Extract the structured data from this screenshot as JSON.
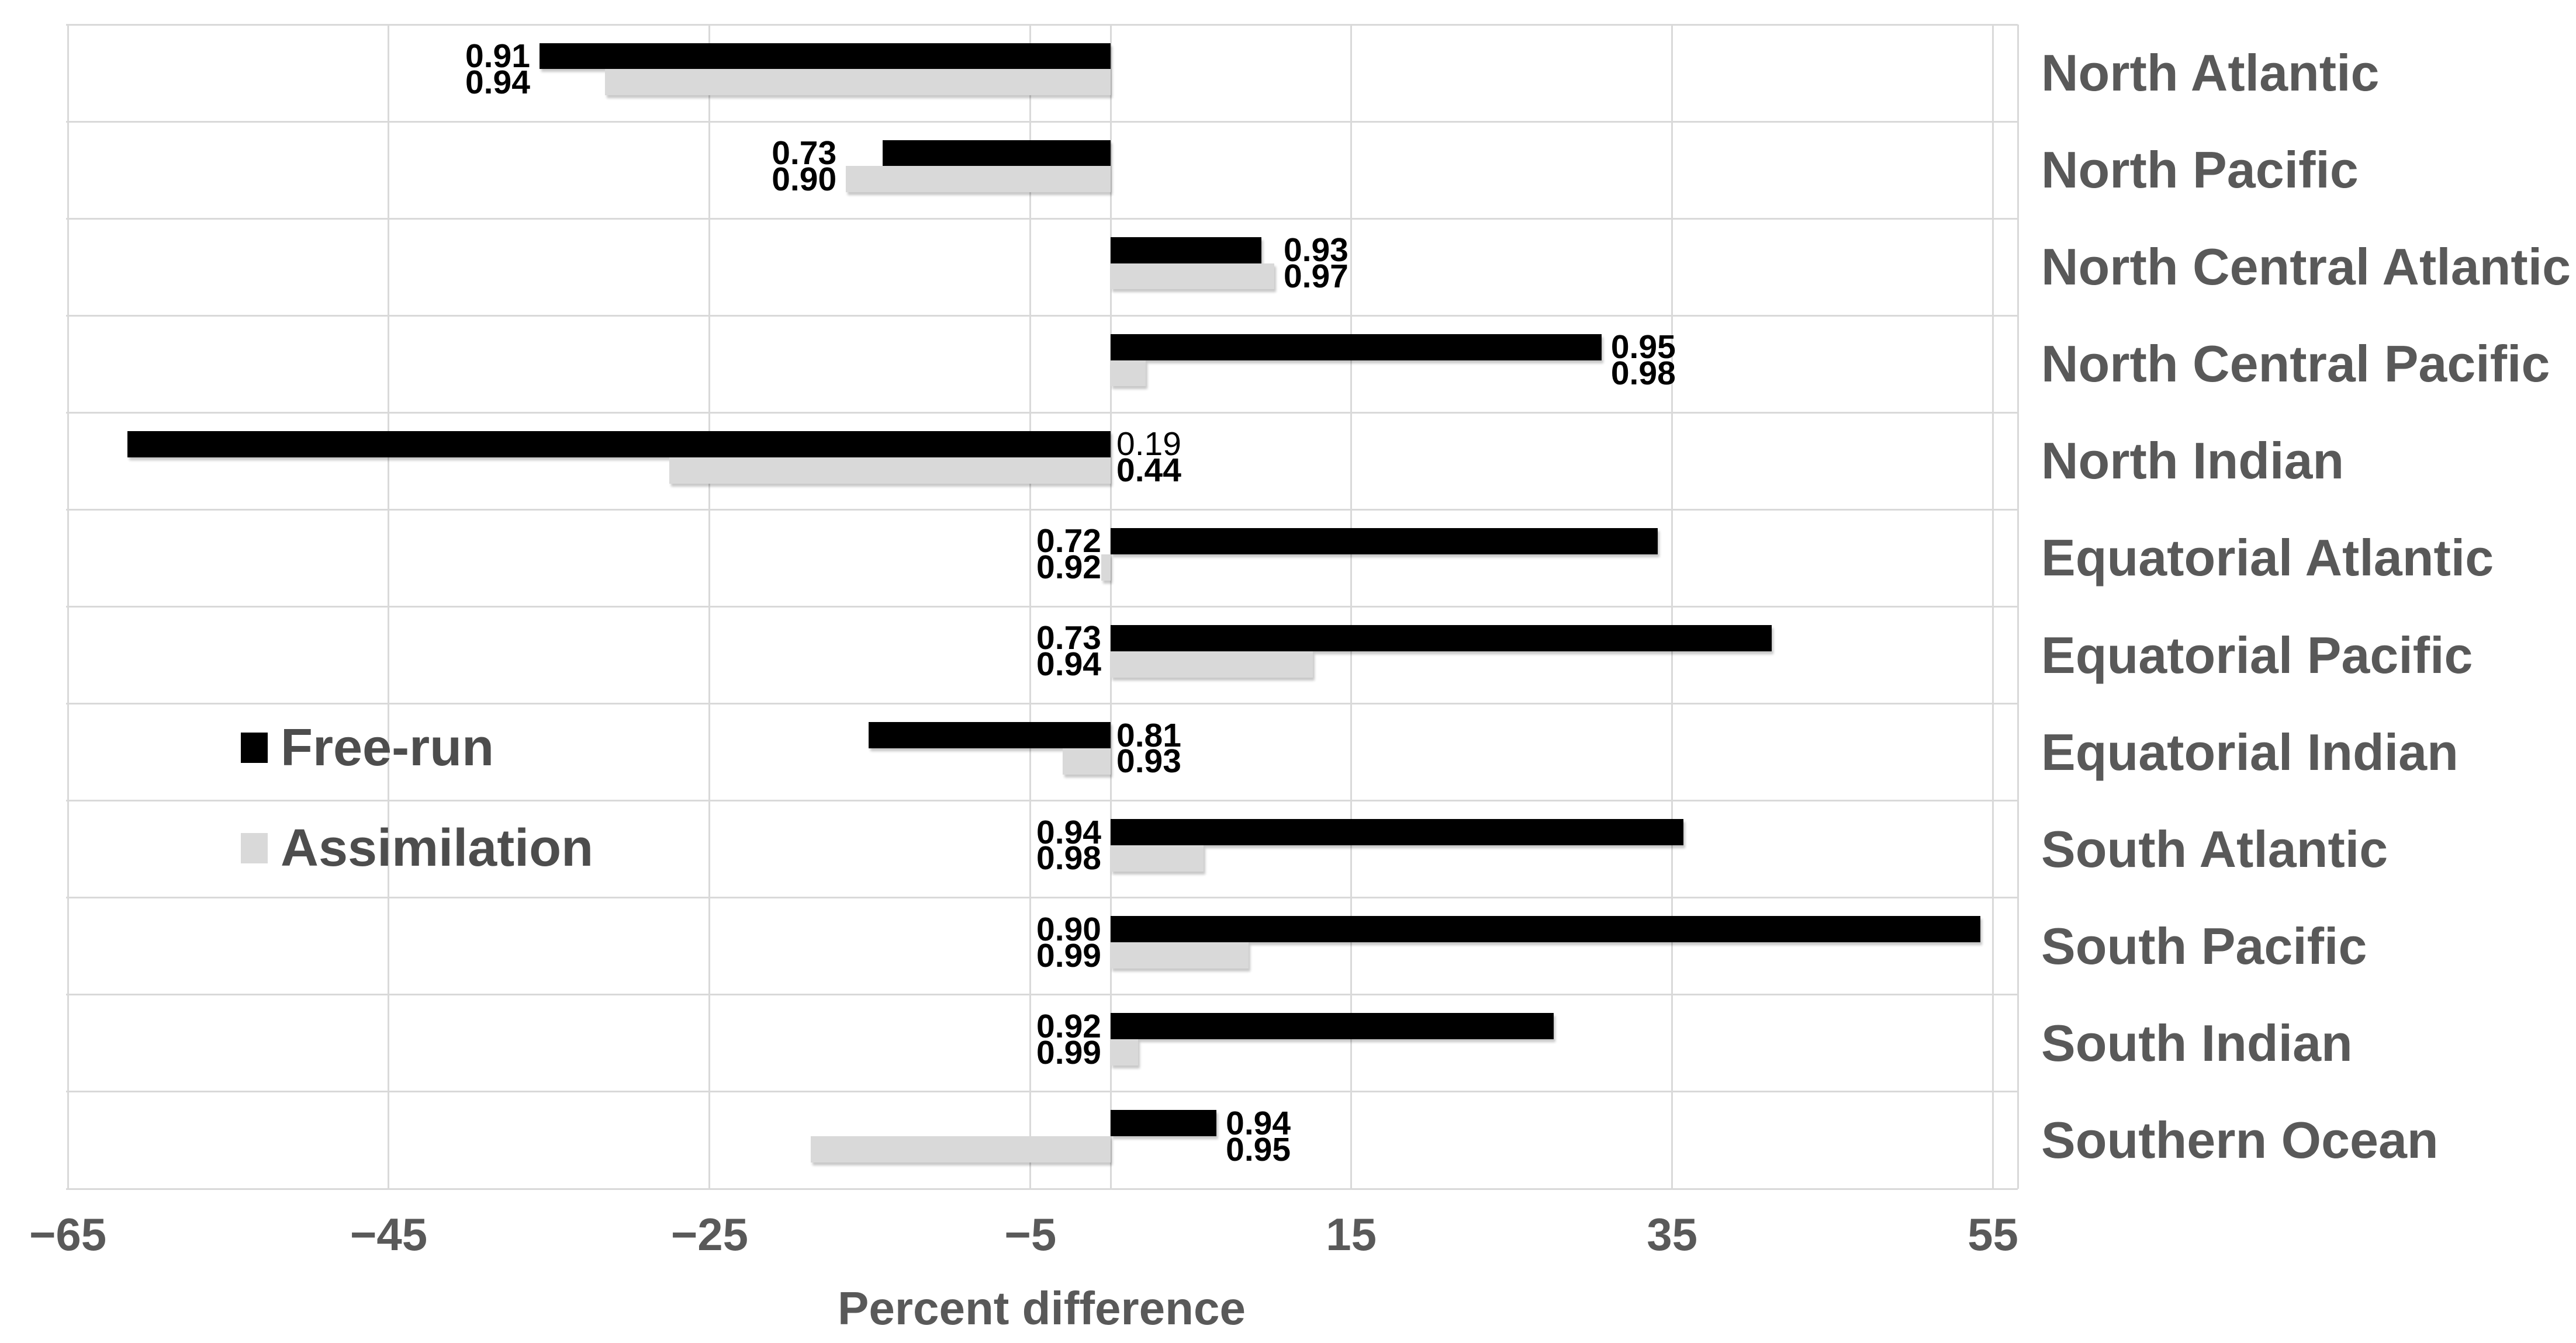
{
  "chart_data": {
    "type": "bar",
    "orientation": "horizontal",
    "title": "",
    "xlabel": "Percent difference",
    "ylabel": "",
    "grid": true,
    "legend_position": "inside-middle-left",
    "xlim": [
      -65.1,
      56.5
    ],
    "x_ticks": [
      {
        "value": -65,
        "label": "−65"
      },
      {
        "value": -45,
        "label": "−45"
      },
      {
        "value": -25,
        "label": "−25"
      },
      {
        "value": -5,
        "label": "−5"
      },
      {
        "value": 15,
        "label": "15"
      },
      {
        "value": 35,
        "label": "35"
      },
      {
        "value": 55,
        "label": "55"
      }
    ],
    "categories": [
      "North Atlantic",
      "North Pacific",
      "North Central Atlantic",
      "North Central Pacific",
      "North Indian",
      "Equatorial Atlantic",
      "Equatorial Pacific",
      "Equatorial Indian",
      "South Atlantic",
      "South Pacific",
      "South Indian",
      "Southern Ocean"
    ],
    "series": [
      {
        "name": "Free-run",
        "color": "#000000",
        "values": [
          -35.6,
          -14.2,
          9.4,
          30.6,
          -61.3,
          34.1,
          41.2,
          -15.1,
          35.7,
          54.2,
          27.6,
          6.6
        ]
      },
      {
        "name": "Assimilation",
        "color": "#d9d9d9",
        "values": [
          -31.5,
          -16.5,
          10.2,
          2.2,
          -27.5,
          -0.6,
          12.6,
          -3.0,
          5.8,
          8.6,
          1.7,
          -18.7
        ]
      }
    ],
    "data_labels": [
      {
        "free": "0.91",
        "assim": "0.94",
        "placement": "left-of-bars",
        "free_bold": true
      },
      {
        "free": "0.73",
        "assim": "0.90",
        "placement": "left-of-bars",
        "free_bold": true
      },
      {
        "free": "0.93",
        "assim": "0.97",
        "placement": "right-of-bars",
        "free_bold": true
      },
      {
        "free": "0.95",
        "assim": "0.98",
        "placement": "right-of-bars",
        "free_bold": true
      },
      {
        "free": "0.19",
        "assim": "0.44",
        "placement": "right-of-zero",
        "free_bold": false
      },
      {
        "free": "0.72",
        "assim": "0.92",
        "placement": "left-of-zero",
        "free_bold": true
      },
      {
        "free": "0.73",
        "assim": "0.94",
        "placement": "left-of-zero",
        "free_bold": true
      },
      {
        "free": "0.81",
        "assim": "0.93",
        "placement": "right-of-zero",
        "free_bold": true
      },
      {
        "free": "0.94",
        "assim": "0.98",
        "placement": "left-of-zero",
        "free_bold": true
      },
      {
        "free": "0.90",
        "assim": "0.99",
        "placement": "left-of-zero",
        "free_bold": true
      },
      {
        "free": "0.92",
        "assim": "0.99",
        "placement": "left-of-zero",
        "free_bold": true
      },
      {
        "free": "0.94",
        "assim": "0.95",
        "placement": "right-of-bars",
        "free_bold": true
      }
    ]
  },
  "legend": {
    "items": [
      {
        "label": "Free-run",
        "color": "#000000"
      },
      {
        "label": "Assimilation",
        "color": "#d9d9d9"
      }
    ]
  },
  "colors": {
    "background": "#ffffff",
    "grid": "#d9d9d9",
    "axis_text": "#595959",
    "region_label_text": "#595959",
    "legend_text": "#4d4d4d",
    "data_label_text": "#000000",
    "bar_free_run": "#000000",
    "bar_assimilation": "#d9d9d9"
  }
}
